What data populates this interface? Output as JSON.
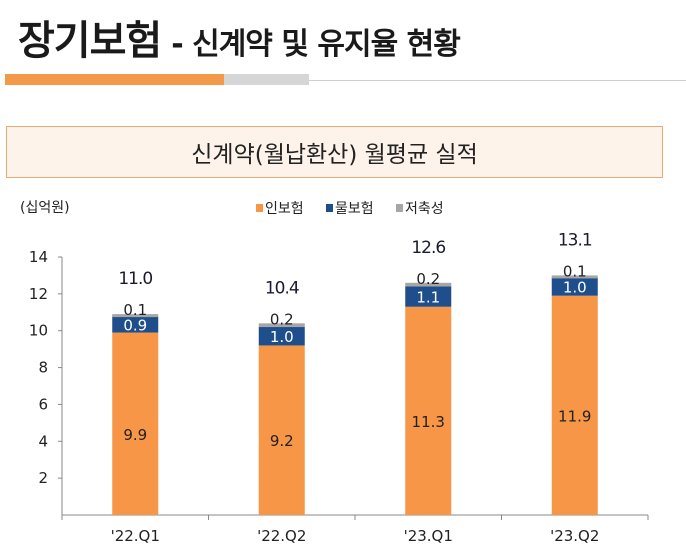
{
  "header": {
    "title": "장기보험",
    "subtitle": "- 신계약 및 유지율 현황"
  },
  "chart_data": {
    "type": "bar",
    "stacked": true,
    "title": "신계약(월납환산) 월평균 실적",
    "unit": "(십억원)",
    "categories": [
      "'22.Q1",
      "'22.Q2",
      "'23.Q1",
      "'23.Q2"
    ],
    "series": [
      {
        "name": "인보험",
        "color": "#f79646",
        "values": [
          9.9,
          9.2,
          11.3,
          11.9
        ]
      },
      {
        "name": "물보험",
        "color": "#1f4e8c",
        "values": [
          0.9,
          1.0,
          1.1,
          1.0
        ]
      },
      {
        "name": "저축성",
        "color": "#a6a6a6",
        "values": [
          0.1,
          0.2,
          0.2,
          0.1
        ]
      }
    ],
    "totals": [
      "11.0",
      "10.4",
      "12.6",
      "13.1"
    ],
    "labels": [
      [
        "9.9",
        "9.2",
        "11.3",
        "11.9"
      ],
      [
        "0.9",
        "1.0",
        "1.1",
        "1.0"
      ],
      [
        "0.1",
        "0.2",
        "0.2",
        "0.1"
      ]
    ],
    "ylim": [
      0,
      14
    ],
    "yticks": [
      "2",
      "4",
      "6",
      "8",
      "10",
      "12",
      "14"
    ],
    "legend": "top-center",
    "grid": false
  }
}
